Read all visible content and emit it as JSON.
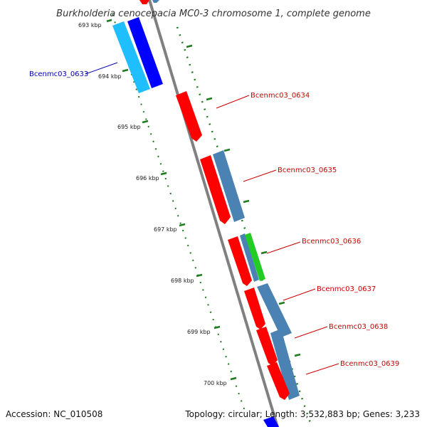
{
  "title": "Burkholderia cenocepacia MC0-3 chromosome 1, complete genome",
  "accession": "Accession: NC_010508",
  "topology": "Topology: circular; Length: 3,532,883 bp; Genes: 3,233",
  "colors": {
    "backbone": "#808080",
    "tick": "#1e7a1e",
    "red_feature": "#ff0000",
    "blue_feature": "#0000ff",
    "cyan_feature": "#1ebeff",
    "steel_feature": "#4a82b4",
    "green_feature": "#22cc22",
    "label_red": "#cc0000",
    "label_blue": "#0000aa"
  },
  "kbp_labels": [
    "693 kbp",
    "694 kbp",
    "695 kbp",
    "696 kbp",
    "697 kbp",
    "698 kbp",
    "699 kbp",
    "700 kbp"
  ],
  "gene_labels": [
    {
      "text": "Bcenmc03_0633",
      "color": "label_blue"
    },
    {
      "text": "Bcenmc03_0634",
      "color": "label_red"
    },
    {
      "text": "Bcenmc03_0635",
      "color": "label_red"
    },
    {
      "text": "Bcenmc03_0636",
      "color": "label_red"
    },
    {
      "text": "Bcenmc03_0637",
      "color": "label_red"
    },
    {
      "text": "Bcenmc03_0638",
      "color": "label_red"
    },
    {
      "text": "Bcenmc03_0639",
      "color": "label_red"
    }
  ]
}
